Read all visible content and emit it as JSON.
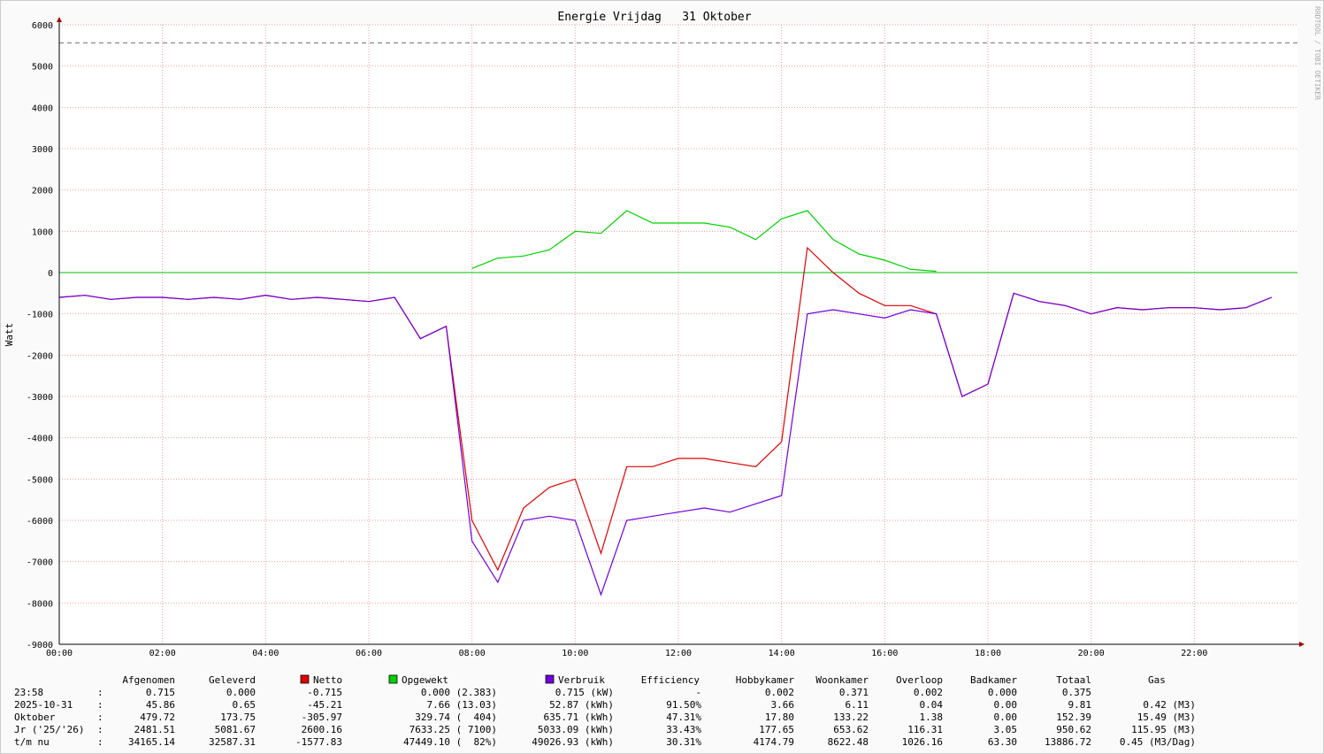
{
  "chart_data": {
    "type": "line",
    "title": "Energie Vrijdag   31 Oktober",
    "y_label": "Watt",
    "side_text": "RRDTOOL / TOBI OETIKER",
    "x": [
      "00:00",
      "00:30",
      "01:00",
      "01:30",
      "02:00",
      "02:30",
      "03:00",
      "03:30",
      "04:00",
      "04:30",
      "05:00",
      "05:30",
      "06:00",
      "06:30",
      "07:00",
      "07:30",
      "08:00",
      "08:30",
      "09:00",
      "09:30",
      "10:00",
      "10:30",
      "11:00",
      "11:30",
      "12:00",
      "12:30",
      "13:00",
      "13:30",
      "14:00",
      "14:30",
      "15:00",
      "15:30",
      "16:00",
      "16:30",
      "17:00",
      "17:30",
      "18:00",
      "18:30",
      "19:00",
      "19:30",
      "20:00",
      "20:30",
      "21:00",
      "21:30",
      "22:00",
      "22:30",
      "23:00",
      "23:30"
    ],
    "xlim": [
      "00:00",
      "24:00"
    ],
    "xticks": [
      "00:00",
      "02:00",
      "04:00",
      "06:00",
      "08:00",
      "10:00",
      "12:00",
      "14:00",
      "16:00",
      "18:00",
      "20:00",
      "22:00"
    ],
    "ylim": [
      -9000,
      6000
    ],
    "yticks": [
      6000,
      5000,
      4000,
      3000,
      2000,
      1000,
      0,
      -1000,
      -2000,
      -3000,
      -4000,
      -5000,
      -6000,
      -7000,
      -8000,
      -9000
    ],
    "grid": true,
    "reference_line": 5560,
    "series": [
      {
        "name": "Netto",
        "color": "#e00000",
        "values": [
          -600,
          -550,
          -650,
          -600,
          -600,
          -650,
          -600,
          -650,
          -550,
          -650,
          -600,
          -650,
          -700,
          -600,
          -1600,
          -1300,
          -6000,
          -7200,
          -5700,
          -5200,
          -5000,
          -6800,
          -4700,
          -4700,
          -4500,
          -4500,
          -4600,
          -4700,
          -4100,
          600,
          0,
          -500,
          -800,
          -800,
          -1000,
          -3000,
          -2700,
          -500,
          -700,
          -800,
          -1000,
          -850,
          -900,
          -850,
          -850,
          -900,
          -850,
          -600
        ]
      },
      {
        "name": "Opgewekt",
        "color": "#00d000",
        "values": [
          null,
          null,
          null,
          null,
          null,
          null,
          null,
          null,
          null,
          null,
          null,
          null,
          null,
          null,
          null,
          null,
          100,
          350,
          400,
          550,
          1000,
          950,
          1500,
          1200,
          1200,
          1200,
          1100,
          800,
          1300,
          1500,
          800,
          450,
          300,
          80,
          30,
          null,
          null,
          null,
          null,
          null,
          null,
          null,
          null,
          null,
          null,
          null,
          null,
          null
        ]
      },
      {
        "name": "Verbruik",
        "color": "#7000e0",
        "values": [
          -600,
          -550,
          -650,
          -600,
          -600,
          -650,
          -600,
          -650,
          -550,
          -650,
          -600,
          -650,
          -700,
          -600,
          -1600,
          -1300,
          -6500,
          -7500,
          -6000,
          -5900,
          -6000,
          -7800,
          -6000,
          -5900,
          -5800,
          -5700,
          -5800,
          -5600,
          -5400,
          -1000,
          -900,
          -1000,
          -1100,
          -900,
          -1000,
          -3000,
          -2700,
          -500,
          -700,
          -800,
          -1000,
          -850,
          -900,
          -850,
          -850,
          -900,
          -850,
          -600
        ]
      }
    ],
    "legend_table": {
      "columns": [
        "Afgenomen",
        "Geleverd",
        "Netto",
        "Opgewekt",
        "Verbruik",
        "Efficiency",
        "Hobbykamer",
        "Woonkamer",
        "Overloop",
        "Badkamer",
        "Totaal",
        "Gas"
      ],
      "rows": [
        [
          "23:58",
          ":",
          "0.715",
          "0.000",
          "-0.715",
          "0.000 (2.383)",
          "0.715 (kW)",
          "-",
          "0.002",
          "0.371",
          "0.002",
          "0.000",
          "0.375",
          ""
        ],
        [
          "2025-10-31",
          ":",
          "45.86",
          "0.65",
          "-45.21",
          "7.66 (13.03)",
          "52.87 (kWh)",
          "91.50%",
          "3.66",
          "6.11",
          "0.04",
          "0.00",
          "9.81",
          "0.42 (M3)"
        ],
        [
          "Oktober",
          ":",
          "479.72",
          "173.75",
          "-305.97",
          "329.74 (  404)",
          "635.71 (kWh)",
          "47.31%",
          "17.80",
          "133.22",
          "1.38",
          "0.00",
          "152.39",
          "15.49 (M3)"
        ],
        [
          "Jr ('25/'26)",
          ":",
          "2481.51",
          "5081.67",
          "2600.16",
          "7633.25 ( 7100)",
          "5033.09 (kWh)",
          "33.43%",
          "177.65",
          "653.62",
          "116.31",
          "3.05",
          "950.62",
          "115.95 (M3)"
        ],
        [
          "t/m nu",
          ":",
          "34165.14",
          "32587.31",
          "-1577.83",
          "47449.10 (  82%)",
          "49026.93 (kWh)",
          "30.31%",
          "4174.79",
          "8622.48",
          "1026.16",
          "63.30",
          "13886.72",
          "0.45 (M3/Dag)"
        ]
      ]
    }
  }
}
